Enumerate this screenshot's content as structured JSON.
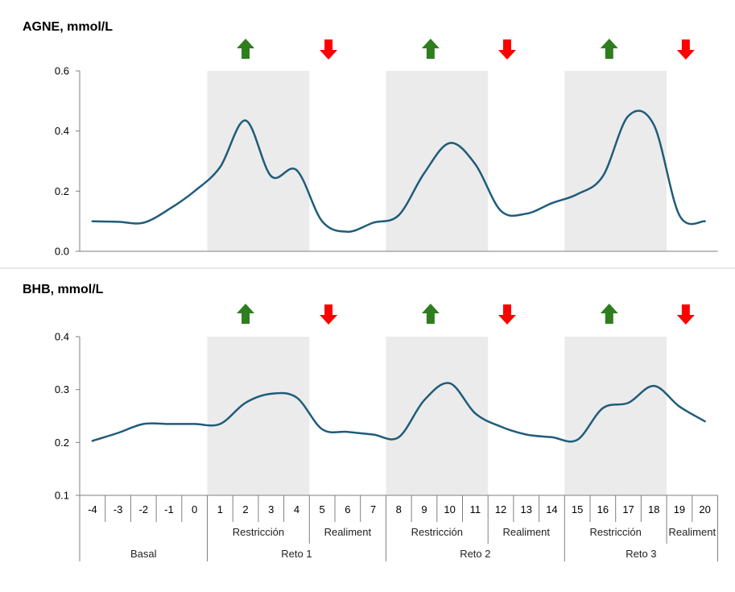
{
  "chart_data": [
    {
      "type": "line",
      "title": "AGNE, mmol/L",
      "ylim": [
        0,
        0.6
      ],
      "yticks": [
        "0.0",
        "0.2",
        "0.4",
        "0.6"
      ],
      "x": [
        -4,
        -3,
        -2,
        -1,
        0,
        1,
        2,
        3,
        4,
        5,
        6,
        7,
        8,
        9,
        10,
        11,
        12,
        13,
        14,
        15,
        16,
        17,
        18,
        19,
        20
      ],
      "series": [
        {
          "name": "",
          "color": "#1f5c7a",
          "values": [
            0.1,
            0.098,
            0.095,
            0.14,
            0.2,
            0.28,
            0.435,
            0.25,
            0.27,
            0.1,
            0.065,
            0.095,
            0.12,
            0.26,
            0.36,
            0.29,
            0.135,
            0.125,
            0.16,
            0.19,
            0.25,
            0.45,
            0.42,
            0.12,
            0.1
          ]
        }
      ],
      "shaded_x_ranges": [
        [
          0.5,
          4.5
        ],
        [
          7.5,
          11.5
        ],
        [
          14.5,
          18.5
        ]
      ],
      "shade_color": "#ebebeb",
      "arrows": [
        {
          "x": 2.5,
          "direction": "up",
          "color": "#2e7d1e"
        },
        {
          "x": 5.75,
          "direction": "down",
          "color": "#ff0000"
        },
        {
          "x": 9.75,
          "direction": "up",
          "color": "#2e7d1e"
        },
        {
          "x": 12.75,
          "direction": "down",
          "color": "#ff0000"
        },
        {
          "x": 16.75,
          "direction": "up",
          "color": "#2e7d1e"
        },
        {
          "x": 19.75,
          "direction": "down",
          "color": "#ff0000"
        }
      ],
      "grid": false
    },
    {
      "type": "line",
      "title": "BHB, mmol/L",
      "ylim": [
        0.1,
        0.4
      ],
      "yticks": [
        "0.1",
        "0.2",
        "0.3",
        "0.4"
      ],
      "x": [
        -4,
        -3,
        -2,
        -1,
        0,
        1,
        2,
        3,
        4,
        5,
        6,
        7,
        8,
        9,
        10,
        11,
        12,
        13,
        14,
        15,
        16,
        17,
        18,
        19,
        20
      ],
      "series": [
        {
          "name": "",
          "color": "#1f5c7a",
          "values": [
            0.203,
            0.218,
            0.235,
            0.235,
            0.235,
            0.235,
            0.275,
            0.292,
            0.285,
            0.225,
            0.22,
            0.215,
            0.21,
            0.28,
            0.312,
            0.255,
            0.23,
            0.215,
            0.21,
            0.205,
            0.265,
            0.275,
            0.307,
            0.268,
            0.24
          ]
        }
      ],
      "shaded_x_ranges": [
        [
          0.5,
          4.5
        ],
        [
          7.5,
          11.5
        ],
        [
          14.5,
          18.5
        ]
      ],
      "shade_color": "#ebebeb",
      "arrows": [
        {
          "x": 2.5,
          "direction": "up",
          "color": "#2e7d1e"
        },
        {
          "x": 5.75,
          "direction": "down",
          "color": "#ff0000"
        },
        {
          "x": 9.75,
          "direction": "up",
          "color": "#2e7d1e"
        },
        {
          "x": 12.75,
          "direction": "down",
          "color": "#ff0000"
        },
        {
          "x": 16.75,
          "direction": "up",
          "color": "#2e7d1e"
        },
        {
          "x": 19.75,
          "direction": "down",
          "color": "#ff0000"
        }
      ],
      "grid": false
    }
  ],
  "x_axis": {
    "categories": [
      "-4",
      "-3",
      "-2",
      "-1",
      "0",
      "1",
      "2",
      "3",
      "4",
      "5",
      "6",
      "7",
      "8",
      "9",
      "10",
      "11",
      "12",
      "13",
      "14",
      "15",
      "16",
      "17",
      "18",
      "19",
      "20"
    ],
    "subgroups": [
      {
        "label": "Restricción",
        "from": 1,
        "to": 4
      },
      {
        "label": "Realiment",
        "from": 5,
        "to": 7
      },
      {
        "label": "Restricción",
        "from": 8,
        "to": 11
      },
      {
        "label": "Realiment",
        "from": 12,
        "to": 14
      },
      {
        "label": "Restricción",
        "from": 15,
        "to": 18
      },
      {
        "label": "Realiment",
        "from": 19,
        "to": 20
      }
    ],
    "groups": [
      {
        "label": "Basal",
        "from": -4,
        "to": 0
      },
      {
        "label": "Reto 1",
        "from": 1,
        "to": 7
      },
      {
        "label": "Reto 2",
        "from": 8,
        "to": 14
      },
      {
        "label": "Reto 3",
        "from": 15,
        "to": 20
      }
    ]
  }
}
